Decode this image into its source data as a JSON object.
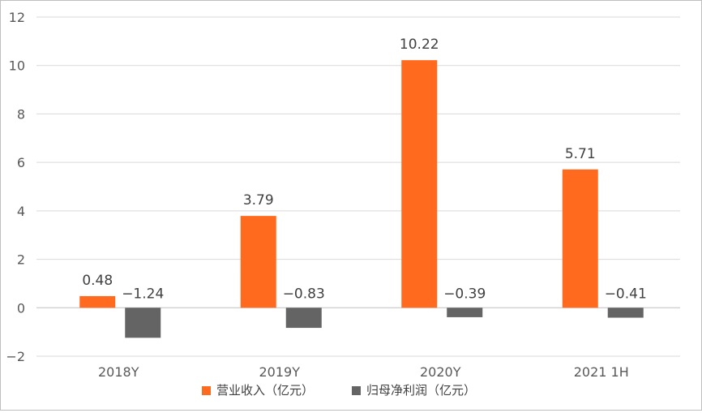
{
  "chart_data": {
    "type": "bar",
    "title": "",
    "xlabel": "",
    "ylabel": "",
    "categories": [
      "2018Y",
      "2019Y",
      "2020Y",
      "2021 1H"
    ],
    "series": [
      {
        "name": "营业收入（亿元）",
        "color": "#ff6a1f",
        "values": [
          0.48,
          3.79,
          10.22,
          5.71
        ],
        "labels": [
          "0.48",
          "3.79",
          "10.22",
          "5.71"
        ]
      },
      {
        "name": "归母净利润（亿元）",
        "color": "#646464",
        "values": [
          -1.24,
          -0.83,
          -0.39,
          -0.41
        ],
        "labels": [
          "−1.24",
          "−0.83",
          "−0.39",
          "−0.41"
        ]
      }
    ],
    "ylim": [
      -2,
      12
    ],
    "yticks": [
      -2,
      0,
      2,
      4,
      6,
      8,
      10,
      12
    ],
    "ytick_labels": [
      "−2",
      "0",
      "2",
      "4",
      "6",
      "8",
      "10",
      "12"
    ],
    "grid": true,
    "legend": "bottom-center"
  }
}
